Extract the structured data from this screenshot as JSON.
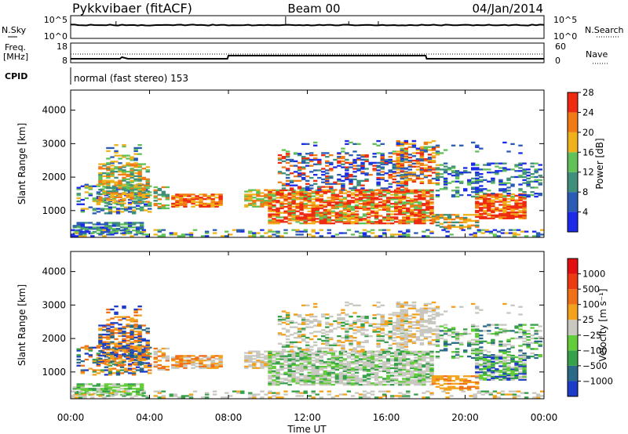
{
  "header": {
    "station": "Pykkvibaer (fitACF)",
    "beam": "Beam 00",
    "date": "04/Jan/2014"
  },
  "sky_panel": {
    "left_label": "N.Sky",
    "right_label": "N.Search",
    "left_ticks": [
      "10^5",
      "10^0"
    ],
    "right_ticks": [
      "10^5",
      "10^0"
    ]
  },
  "freq_panel": {
    "left_label_line1": "Freq.",
    "left_label_line2": "[MHz]",
    "left_ticks": [
      "18",
      "8"
    ],
    "right_label": "Nave",
    "right_ticks": [
      "60",
      "0"
    ]
  },
  "cpid_panel": {
    "label": "CPID",
    "text": "normal (fast stereo) 153"
  },
  "x_axis": {
    "label": "Time UT",
    "ticks": [
      "00:00",
      "04:00",
      "08:00",
      "12:00",
      "16:00",
      "20:00",
      "00:00"
    ]
  },
  "chart_data": [
    {
      "type": "heatmap",
      "name": "power",
      "ylabel": "Slant Range [km]",
      "yticks": [
        "1000",
        "2000",
        "3000",
        "4000"
      ],
      "ylim": [
        200,
        4600
      ],
      "xlim_hours": [
        0,
        24
      ],
      "colorbar_label": "Power [dB]",
      "colorbar_ticks": [
        "4",
        "8",
        "12",
        "16",
        "20",
        "24",
        "28"
      ],
      "colorbar_colors": [
        "#1c2be8",
        "#2a5cb4",
        "#3f8f7a",
        "#62c058",
        "#f0b21c",
        "#f07a14",
        "#ee2a10"
      ]
    },
    {
      "type": "heatmap",
      "name": "velocity",
      "ylabel": "Slant Range [km]",
      "yticks": [
        "1000",
        "2000",
        "3000",
        "4000"
      ],
      "ylim": [
        200,
        4600
      ],
      "xlim_hours": [
        0,
        24
      ],
      "colorbar_label": "Velocity [m s⁻¹]",
      "colorbar_ticks": [
        "1000",
        "500",
        "100",
        "25",
        "−25",
        "−100",
        "−500",
        "−1000"
      ],
      "colorbar_colors": [
        "#1c3cc8",
        "#2a6a88",
        "#37a04a",
        "#62cc3a",
        "#c8c8c0",
        "#f2a21c",
        "#f07018",
        "#ec3a12",
        "#e21010"
      ]
    }
  ]
}
